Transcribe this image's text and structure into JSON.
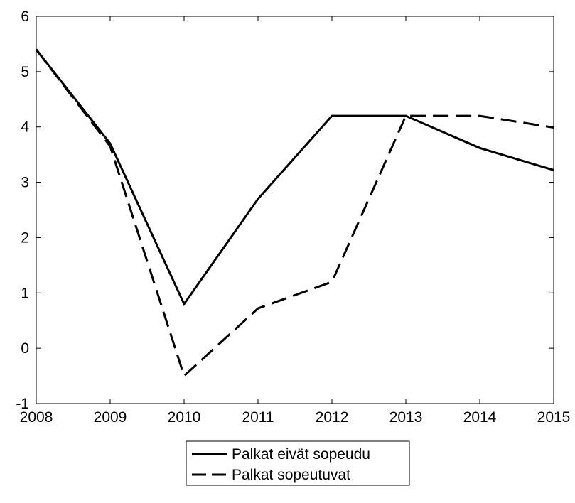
{
  "chart_data": {
    "type": "line",
    "x": [
      2008,
      2009,
      2010,
      2011,
      2012,
      2013,
      2014,
      2015
    ],
    "x_tick_labels": [
      "2008",
      "2009",
      "2010",
      "2011",
      "2012",
      "2013",
      "2014",
      "2015"
    ],
    "y_tick_labels": [
      "6",
      "5",
      "4",
      "3",
      "2",
      "1",
      "0",
      "-1"
    ],
    "ylim": [
      -1,
      6
    ],
    "xlim": [
      2008,
      2015
    ],
    "grid": false,
    "legend_position": "bottom-center",
    "series": [
      {
        "name": "Palkat eivät sopeudu",
        "style": "solid",
        "color": "#000000",
        "values": [
          5.4,
          3.7,
          0.8,
          2.7,
          4.2,
          4.2,
          3.62,
          3.22
        ]
      },
      {
        "name": "Palkat sopeutuvat",
        "style": "dashed",
        "color": "#000000",
        "values": [
          5.4,
          3.65,
          -0.5,
          0.72,
          1.2,
          4.2,
          4.2,
          3.99
        ]
      }
    ]
  }
}
